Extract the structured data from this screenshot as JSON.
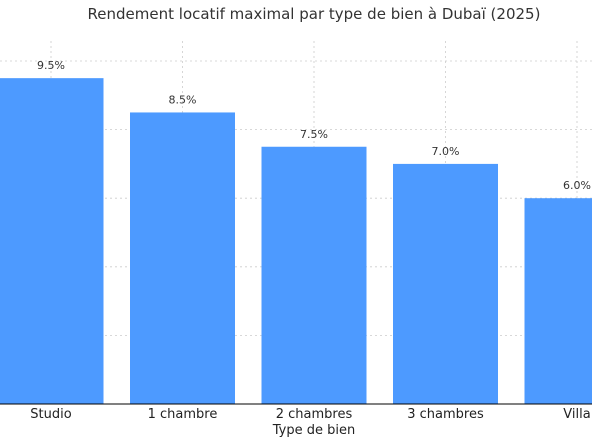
{
  "chart_data": {
    "type": "bar",
    "title": "Rendement locatif maximal par type de bien à Dubaï (2025)",
    "xlabel": "Type de bien",
    "ylabel": "",
    "categories": [
      "Studio",
      "1 chambre",
      "2 chambres",
      "3 chambres",
      "Villa"
    ],
    "values": [
      9.5,
      8.5,
      7.5,
      7.0,
      6.0
    ],
    "value_labels": [
      "9.5%",
      "8.5%",
      "7.5%",
      "7.0%",
      "6.0%"
    ],
    "ylim": [
      0,
      10
    ],
    "grid": true,
    "bar_color": "#4d9aff"
  }
}
